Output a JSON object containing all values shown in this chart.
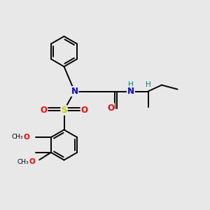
{
  "bg_color": "#e8e8e8",
  "atom_colors": {
    "N": "#0000ff",
    "O": "#ff0000",
    "S": "#cccc00",
    "C": "#000000",
    "H": "#008080"
  },
  "bond_color": "#000000",
  "bond_width": 1.4,
  "figsize": [
    3.0,
    3.0
  ],
  "dpi": 100
}
